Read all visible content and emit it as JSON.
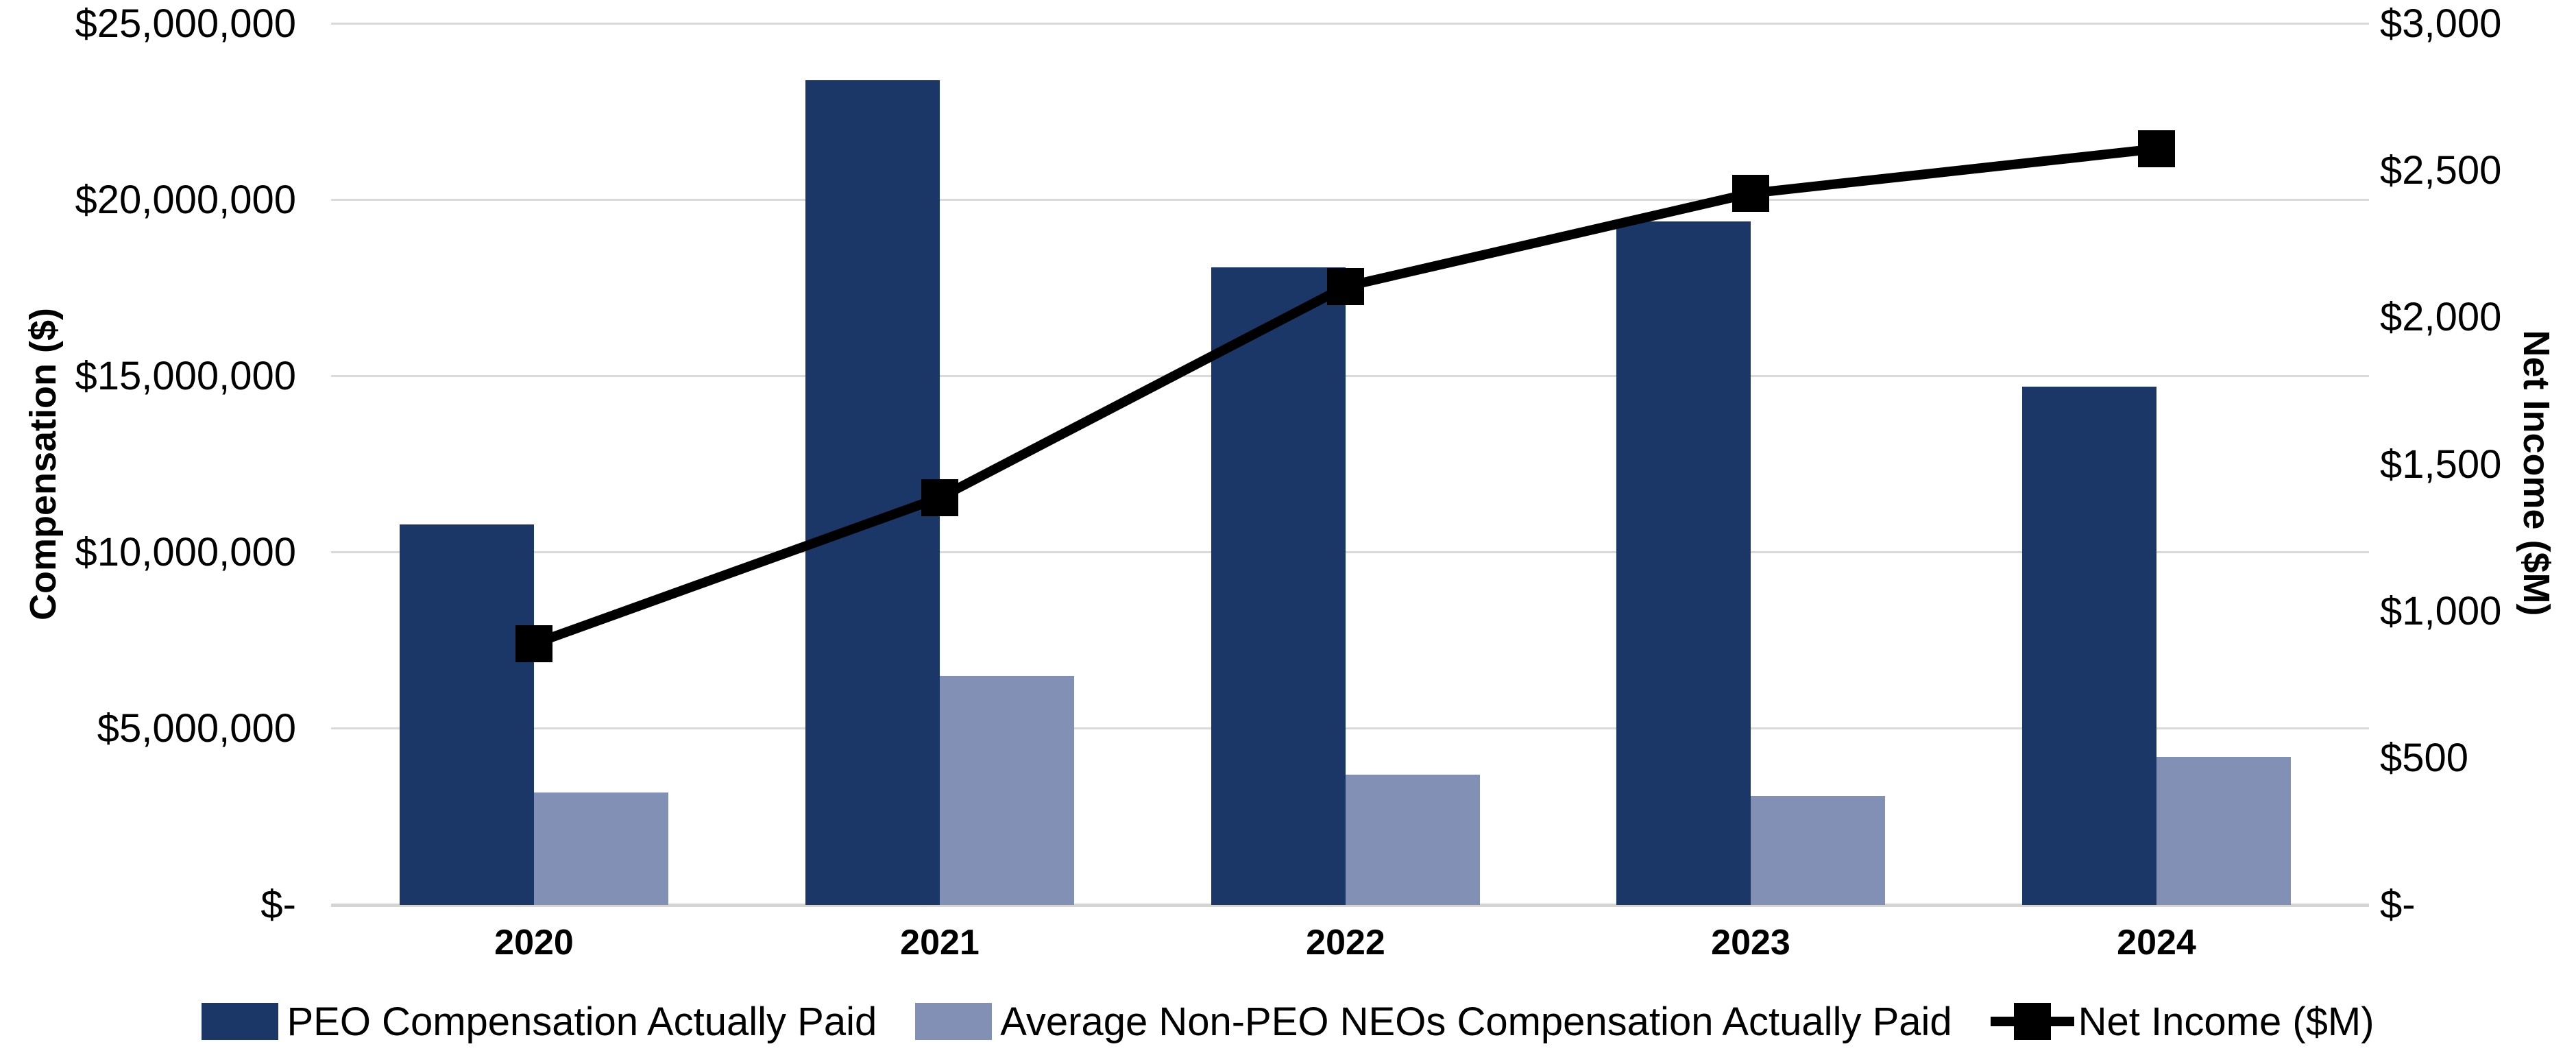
{
  "chart_data": {
    "type": "combo-bar-line",
    "title": "",
    "categories": [
      "2020",
      "2021",
      "2022",
      "2023",
      "2024"
    ],
    "series": [
      {
        "name": "PEO Compensation Actually Paid",
        "type": "bar",
        "axis": "left",
        "color": "#1A3768",
        "values": [
          10800000,
          23400000,
          18100000,
          19400000,
          14700000
        ]
      },
      {
        "name": "Average Non-PEO NEOs Compensation Actually Paid",
        "type": "bar",
        "axis": "left",
        "color": "#8290B5",
        "values": [
          3200000,
          6500000,
          3700000,
          3100000,
          4200000
        ]
      },
      {
        "name": "Net Income ($M)",
        "type": "line",
        "axis": "right",
        "color": "#000000",
        "marker": "square",
        "values": [
          890,
          1386,
          2105,
          2424,
          2575
        ]
      }
    ],
    "left_axis": {
      "title": "Compensation ($)",
      "min": 0,
      "max": 25000000,
      "tick_step": 5000000,
      "labels": [
        "$25,000,000",
        "$20,000,000",
        "$15,000,000",
        "$10,000,000",
        "$5,000,000",
        "$-"
      ]
    },
    "right_axis": {
      "title": "Net Income ($M)",
      "min": 0,
      "max": 3000,
      "tick_step": 500,
      "labels": [
        "$3,000",
        "$2,500",
        "$2,000",
        "$1,500",
        "$1,000",
        "$500",
        "$-"
      ]
    },
    "gridlines": true,
    "gridline_color": "#D9D9D9",
    "legend_position": "bottom",
    "background_color": "#FFFFFF"
  }
}
